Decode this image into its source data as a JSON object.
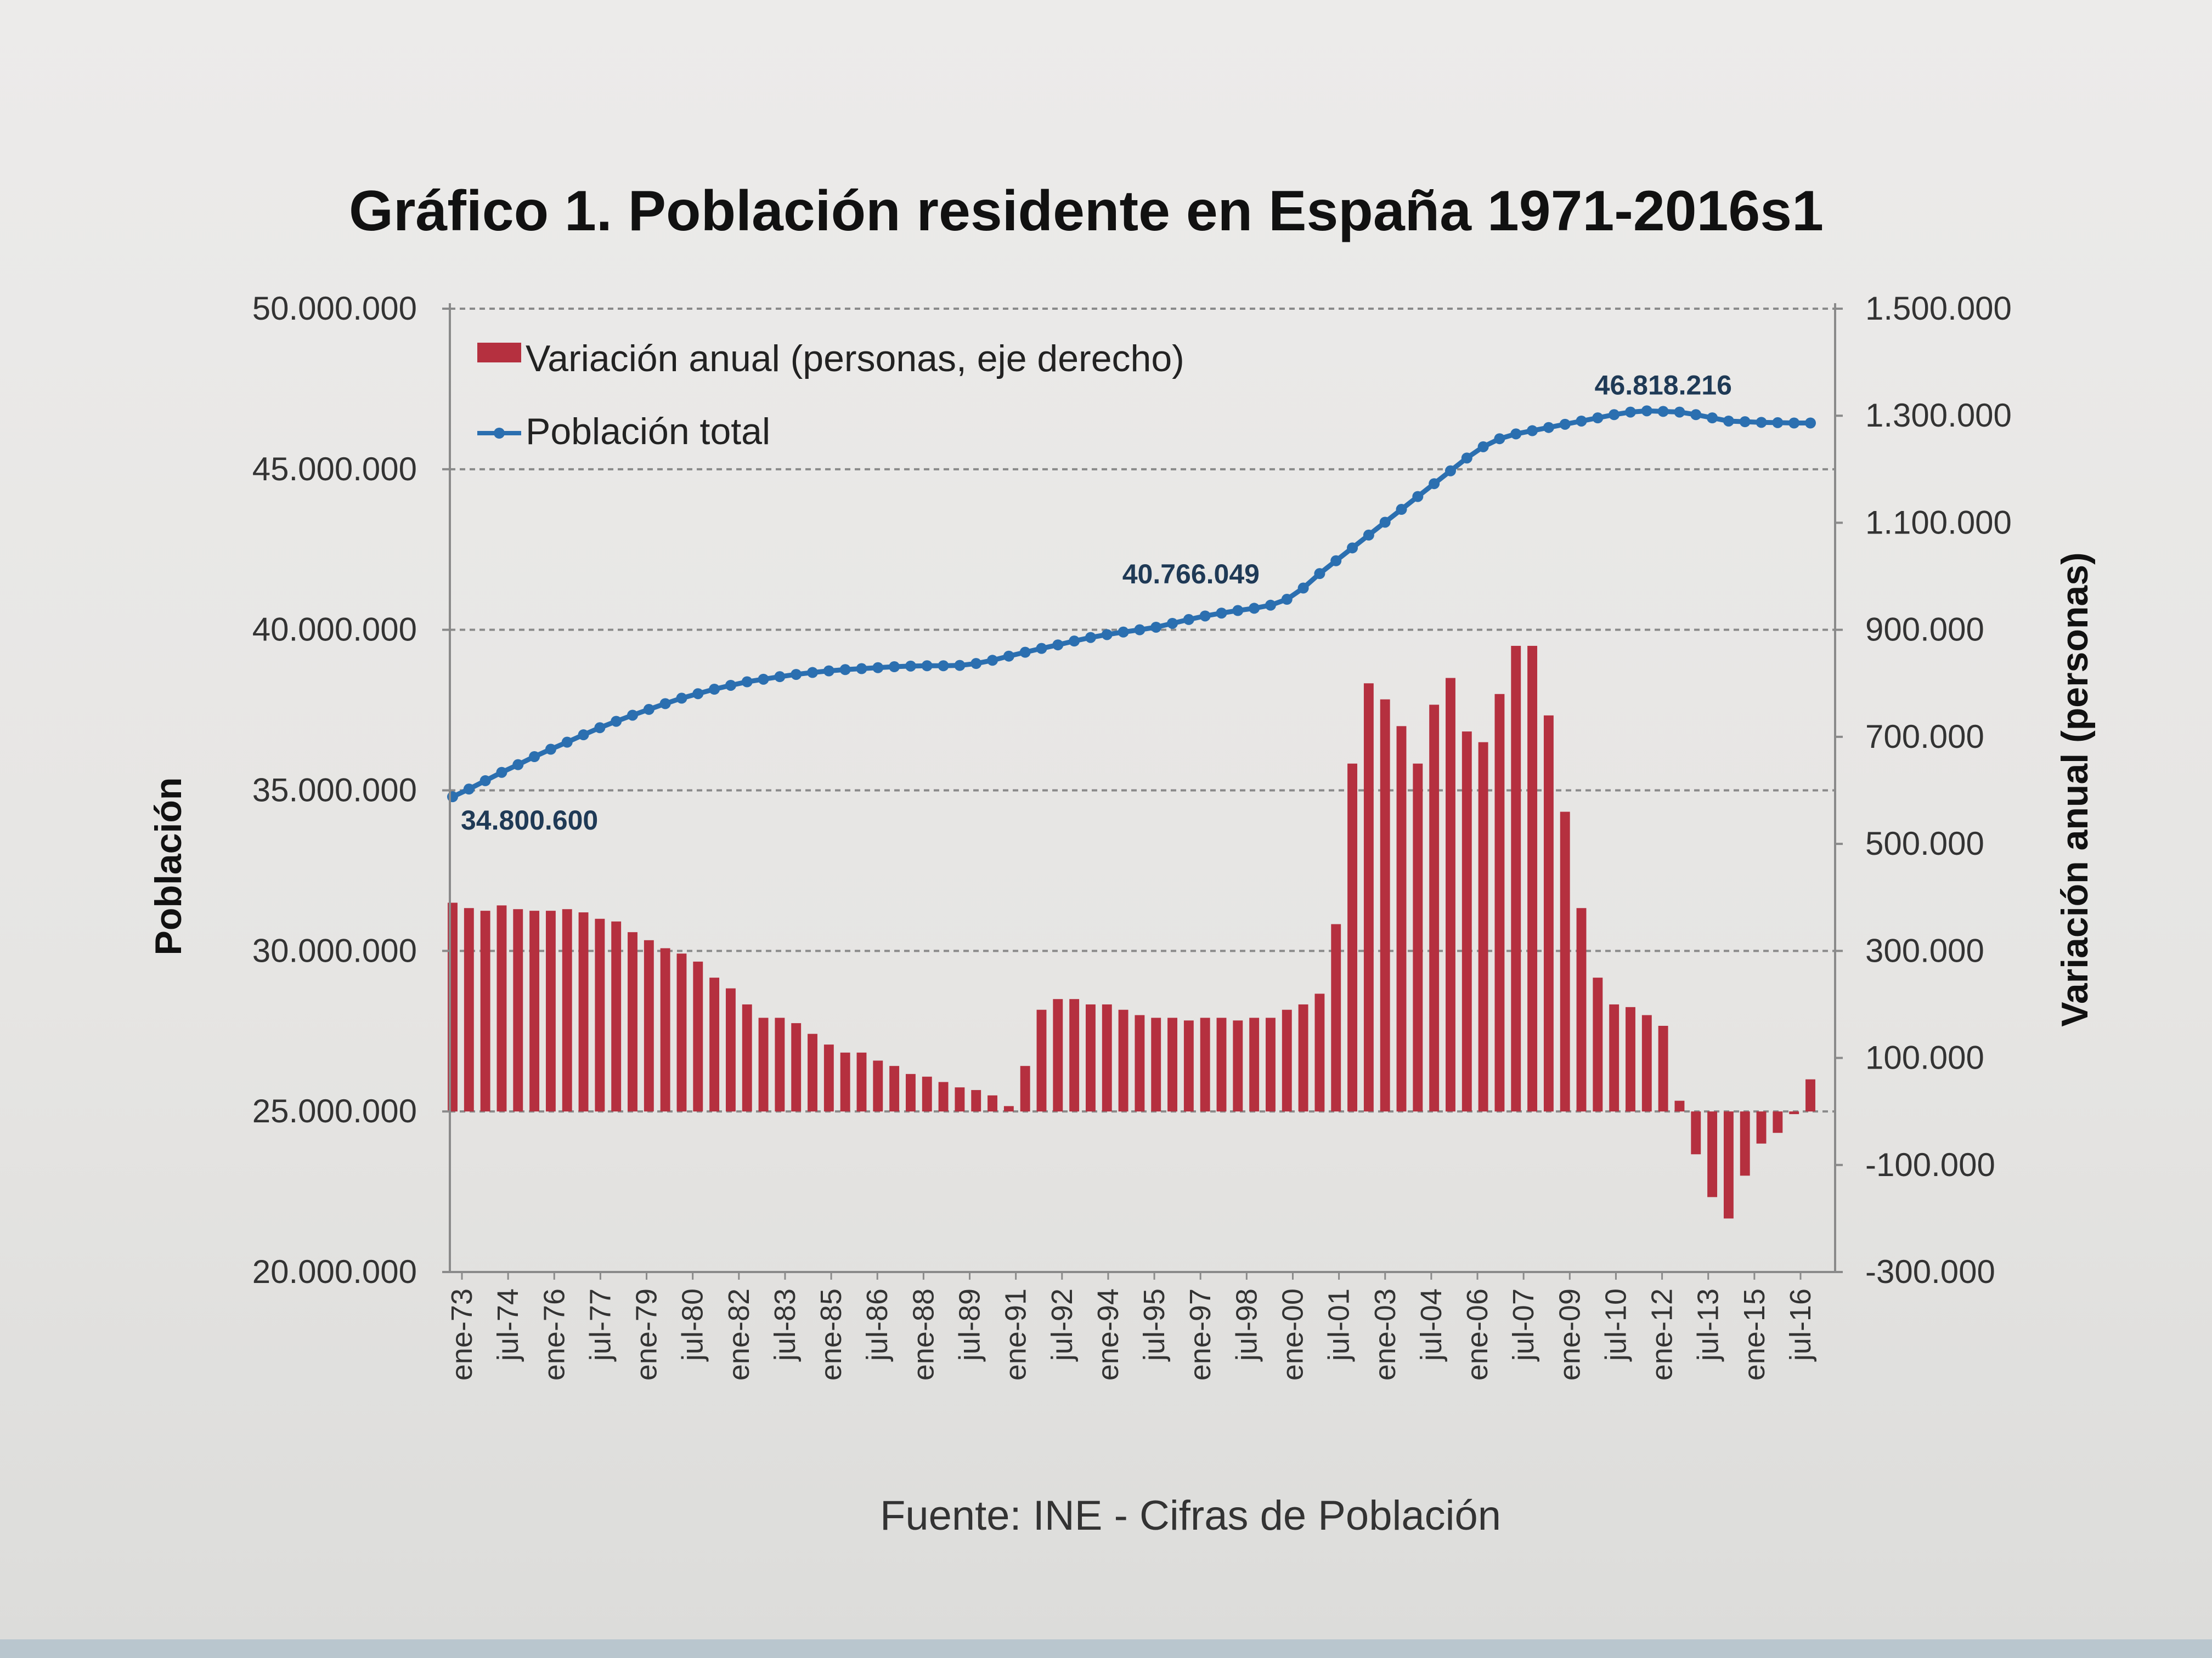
{
  "chart_data": {
    "type": "bar",
    "title": "Gráfico 1. Población residente en España 1971-2016s1",
    "xlabel": "",
    "ylabel": "Población",
    "y2label": "Variación anual (personas)",
    "source": "Fuente: INE - Cifras de Población",
    "legend": {
      "placement": "top-left",
      "entries": [
        "Variación anual (personas, eje derecho)",
        "Población total"
      ]
    },
    "grid": true,
    "x_tick_labels": [
      "ene-73",
      "jul-74",
      "ene-76",
      "jul-77",
      "ene-79",
      "jul-80",
      "ene-82",
      "jul-83",
      "ene-85",
      "jul-86",
      "ene-88",
      "jul-89",
      "ene-91",
      "jul-92",
      "ene-94",
      "jul-95",
      "ene-97",
      "jul-98",
      "ene-00",
      "jul-01",
      "ene-03",
      "jul-04",
      "ene-06",
      "jul-07",
      "ene-09",
      "jul-10",
      "ene-12",
      "jul-13",
      "ene-15",
      "jul-16"
    ],
    "y_ticks": [
      "20.000.000",
      "25.000.000",
      "30.000.000",
      "35.000.000",
      "40.000.000",
      "45.000.000",
      "50.000.000"
    ],
    "y2_ticks": [
      "-300.000",
      "-100.000",
      "100.000",
      "300.000",
      "500.000",
      "700.000",
      "900.000",
      "1.100.000",
      "1.300.000",
      "1.500.000"
    ],
    "ylim": [
      20000000,
      50000000
    ],
    "y2lim": [
      -300000,
      1500000
    ],
    "annotations": [
      "34.800.600",
      "40.766.049",
      "46.818.216"
    ],
    "series": [
      {
        "name": "Variación anual (personas, eje derecho)",
        "type": "bar",
        "axis": "right",
        "color": "#b5303f",
        "values": [
          390000,
          380000,
          375000,
          385000,
          378000,
          375000,
          375000,
          378000,
          372000,
          360000,
          355000,
          335000,
          320000,
          305000,
          295000,
          280000,
          250000,
          230000,
          200000,
          175000,
          175000,
          165000,
          145000,
          125000,
          110000,
          110000,
          95000,
          85000,
          70000,
          65000,
          55000,
          45000,
          40000,
          30000,
          10000,
          85000,
          190000,
          210000,
          210000,
          200000,
          200000,
          190000,
          180000,
          175000,
          175000,
          170000,
          175000,
          175000,
          170000,
          175000,
          175000,
          190000,
          200000,
          220000,
          350000,
          650000,
          800000,
          770000,
          720000,
          650000,
          760000,
          810000,
          710000,
          690000,
          780000,
          870000,
          870000,
          740000,
          560000,
          380000,
          250000,
          200000,
          195000,
          180000,
          160000,
          20000,
          -80000,
          -160000,
          -200000,
          -120000,
          -60000,
          -40000,
          -5000,
          60000
        ]
      },
      {
        "name": "Población total",
        "type": "line",
        "axis": "left",
        "color": "#2b6fb0",
        "values": [
          34800600,
          35040000,
          35300000,
          35560000,
          35800000,
          36050000,
          36280000,
          36500000,
          36730000,
          36950000,
          37150000,
          37340000,
          37520000,
          37700000,
          37870000,
          38010000,
          38150000,
          38270000,
          38380000,
          38460000,
          38540000,
          38610000,
          38670000,
          38720000,
          38760000,
          38790000,
          38820000,
          38850000,
          38870000,
          38880000,
          38880000,
          38890000,
          38950000,
          39050000,
          39180000,
          39300000,
          39420000,
          39530000,
          39650000,
          39760000,
          39850000,
          39930000,
          40000000,
          40080000,
          40200000,
          40320000,
          40430000,
          40520000,
          40600000,
          40670000,
          40766049,
          40950000,
          41300000,
          41750000,
          42150000,
          42550000,
          42950000,
          43350000,
          43750000,
          44150000,
          44550000,
          44950000,
          45350000,
          45700000,
          45950000,
          46100000,
          46200000,
          46300000,
          46400000,
          46500000,
          46600000,
          46700000,
          46780000,
          46818216,
          46800000,
          46780000,
          46700000,
          46600000,
          46500000,
          46480000,
          46460000,
          46450000,
          46440000,
          46440000
        ]
      }
    ]
  }
}
